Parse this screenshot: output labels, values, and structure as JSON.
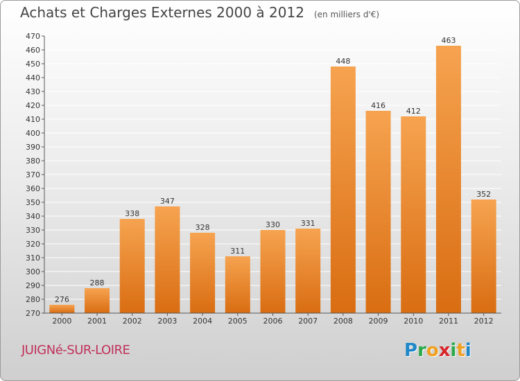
{
  "title": "Achats et Charges Externes 2000 à 2012",
  "unit": "(en milliers d'€)",
  "commune": "JUIGNé-SUR-LOIRE",
  "logo": {
    "letters": [
      "P",
      "r",
      "o",
      "x",
      "i",
      "t",
      "i"
    ],
    "colors": [
      "#1e88c8",
      "#2aa84a",
      "#f0a020",
      "#d8252a",
      "#2aa84a",
      "#f0a020",
      "#1e88c8"
    ]
  },
  "colors": {
    "bar_top": "#f6a350",
    "bar_bottom": "#d96d12",
    "grid": "#ffffff"
  },
  "chart_data": {
    "type": "bar",
    "categories": [
      "2000",
      "2001",
      "2002",
      "2003",
      "2004",
      "2005",
      "2006",
      "2007",
      "2008",
      "2009",
      "2010",
      "2011",
      "2012"
    ],
    "values": [
      276,
      288,
      338,
      347,
      328,
      311,
      330,
      331,
      448,
      416,
      412,
      463,
      352
    ],
    "ylim": [
      270,
      470
    ],
    "yticks": [
      270,
      280,
      290,
      300,
      310,
      320,
      330,
      340,
      350,
      360,
      370,
      380,
      390,
      400,
      410,
      420,
      430,
      440,
      450,
      460,
      470
    ],
    "grid": true
  }
}
